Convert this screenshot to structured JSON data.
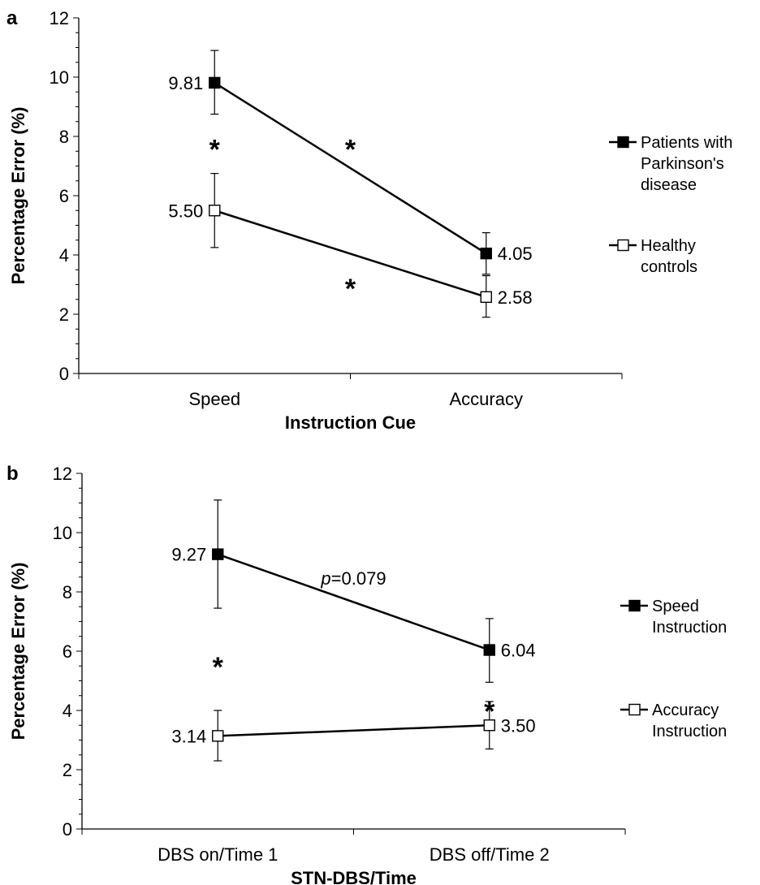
{
  "chart_data": [
    {
      "panel": "a",
      "type": "line",
      "categories": [
        "Speed",
        "Accuracy"
      ],
      "xlabel": "Instruction Cue",
      "ylabel": "Percentage Error (%)",
      "ylim": [
        0,
        12
      ],
      "yticks": [
        0,
        2,
        4,
        6,
        8,
        10,
        12
      ],
      "grid": false,
      "legend_position": "right",
      "series": [
        {
          "name": "Patients with Parkinson's disease",
          "legend_lines": [
            "Patients with",
            "Parkinson's",
            "disease"
          ],
          "marker": "filled-square",
          "values": [
            9.81,
            4.05
          ],
          "labels": [
            "9.81",
            "4.05"
          ],
          "error_low": [
            8.75,
            3.35
          ],
          "error_high": [
            10.9,
            4.75
          ]
        },
        {
          "name": "Healthy controls",
          "legend_lines": [
            "Healthy",
            "controls"
          ],
          "marker": "open-square",
          "values": [
            5.5,
            2.58
          ],
          "labels": [
            "5.50",
            "2.58"
          ],
          "error_low": [
            4.25,
            1.9
          ],
          "error_high": [
            6.75,
            3.3
          ]
        }
      ],
      "annotations": [
        {
          "text": "*",
          "x": 0,
          "y": 7.8
        },
        {
          "text": "*",
          "x": 0.5,
          "y": 7.8
        },
        {
          "text": "*",
          "x": 0.5,
          "y": 3.1
        }
      ]
    },
    {
      "panel": "b",
      "type": "line",
      "categories": [
        "DBS on/Time 1",
        "DBS off/Time 2"
      ],
      "xlabel": "STN-DBS/Time",
      "ylabel": "Percentage Error (%)",
      "ylim": [
        0,
        12
      ],
      "yticks": [
        0,
        2,
        4,
        6,
        8,
        10,
        12
      ],
      "grid": false,
      "legend_position": "right",
      "series": [
        {
          "name": "Speed Instruction",
          "legend_lines": [
            "Speed",
            "Instruction"
          ],
          "marker": "filled-square",
          "values": [
            9.27,
            6.04
          ],
          "labels": [
            "9.27",
            "6.04"
          ],
          "error_low": [
            7.45,
            4.95
          ],
          "error_high": [
            11.1,
            7.1
          ]
        },
        {
          "name": "Accuracy Instruction",
          "legend_lines": [
            "Accuracy",
            "Instruction"
          ],
          "marker": "open-square",
          "values": [
            3.14,
            3.5
          ],
          "labels": [
            "3.14",
            "3.50"
          ],
          "error_low": [
            2.3,
            2.7
          ],
          "error_high": [
            4.0,
            4.3
          ]
        }
      ],
      "annotations": [
        {
          "text": "*",
          "x": 0,
          "y": 5.7
        },
        {
          "text": "*",
          "x": 1,
          "y": 4.2
        },
        {
          "text_italic": "p",
          "text": "=0.079",
          "x": 0.5,
          "y": 8.25
        }
      ]
    }
  ]
}
